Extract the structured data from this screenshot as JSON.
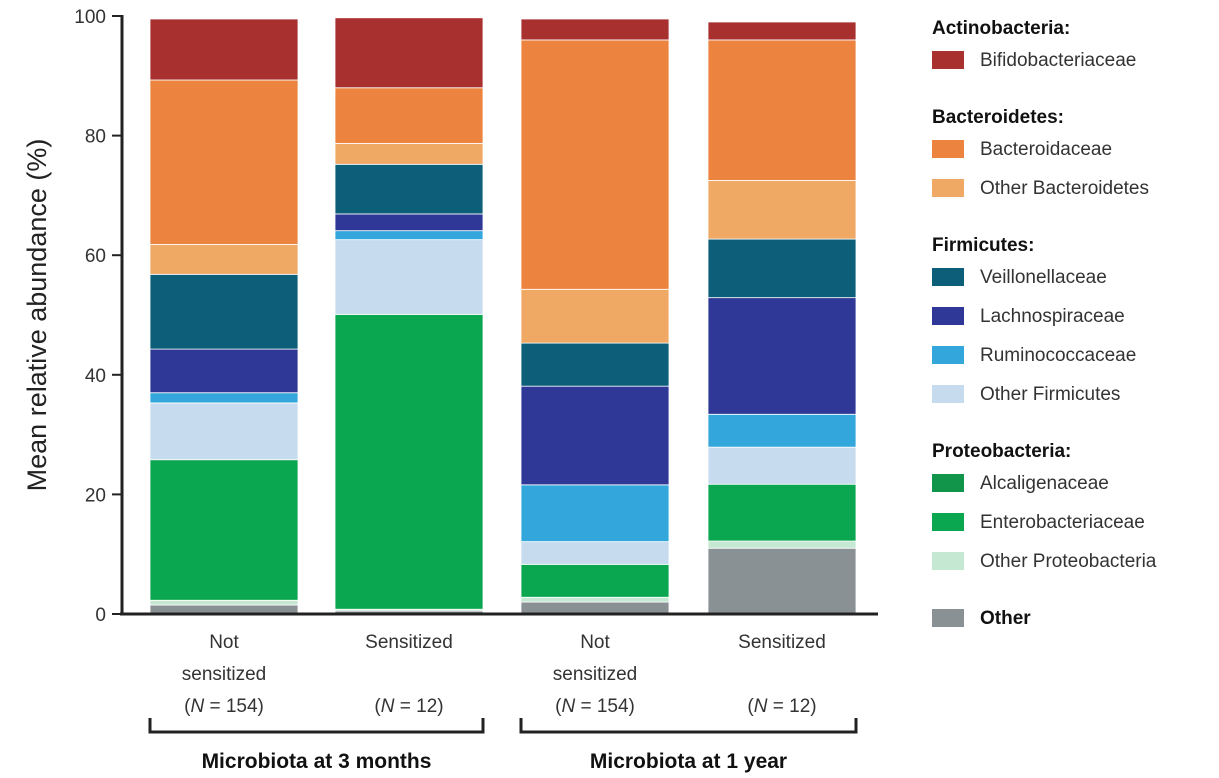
{
  "chart_data": {
    "type": "bar",
    "stacked": true,
    "title": "",
    "ylabel": "Mean relative abundance  (%)",
    "ylim": [
      0,
      100
    ],
    "yticks": [
      "0",
      "20",
      "40",
      "60",
      "80",
      "100"
    ],
    "categories": [
      {
        "line1": "Not",
        "line2": "sensitized",
        "n_pre": "(",
        "n_var": "N",
        "n_post": " = 154)"
      },
      {
        "line1": "Sensitized",
        "line2": "",
        "n_pre": "(",
        "n_var": "N",
        "n_post": " = 12)"
      },
      {
        "line1": "Not",
        "line2": "sensitized",
        "n_pre": "(",
        "n_var": "N",
        "n_post": " = 154)"
      },
      {
        "line1": "Sensitized",
        "line2": "",
        "n_pre": "(",
        "n_var": "N",
        "n_post": " = 12)"
      }
    ],
    "groups": [
      {
        "label": "Microbiota at 3 months",
        "categories": [
          0,
          1
        ]
      },
      {
        "label": "Microbiota at 1 year",
        "categories": [
          2,
          3
        ]
      }
    ],
    "series": [
      {
        "name": "Other",
        "color": "#8a9195",
        "values": [
          1.5,
          0.5,
          2.0,
          11.0
        ]
      },
      {
        "name": "Other Proteobacteria",
        "color": "#c5e8d2",
        "values": [
          0.8,
          0.3,
          0.8,
          1.2
        ]
      },
      {
        "name": "Enterobacteriaceae",
        "color": "#0aa650",
        "values": [
          23.5,
          49.3,
          5.5,
          9.5
        ]
      },
      {
        "name": "Alcaligenaceae",
        "color": "#10954a",
        "values": [
          0,
          0,
          0,
          0
        ]
      },
      {
        "name": "Other Firmicutes",
        "color": "#c6dcee",
        "values": [
          9.5,
          12.5,
          3.8,
          6.2
        ]
      },
      {
        "name": "Ruminococcaceae",
        "color": "#33a6dc",
        "values": [
          1.7,
          1.5,
          9.5,
          5.5
        ]
      },
      {
        "name": "Lachnospiraceae",
        "color": "#2f3896",
        "values": [
          7.3,
          2.8,
          16.5,
          19.5
        ]
      },
      {
        "name": "Veillonellaceae",
        "color": "#0d5f79",
        "values": [
          12.5,
          8.3,
          7.2,
          9.8
        ]
      },
      {
        "name": "Other Bacteroidetes",
        "color": "#f0a865",
        "values": [
          5.0,
          3.5,
          9.0,
          9.8
        ]
      },
      {
        "name": "Bacteroidaceae",
        "color": "#ec833e",
        "values": [
          27.5,
          9.3,
          41.7,
          23.5
        ]
      },
      {
        "name": "Bifidobacteriaceae",
        "color": "#a8302e",
        "values": [
          10.2,
          11.7,
          3.5,
          3.0
        ]
      }
    ],
    "legend": {
      "placement": "right",
      "groups": [
        {
          "label": "Actinobacteria:",
          "items": [
            {
              "name": "Bifidobacteriaceae",
              "color": "#a8302e"
            }
          ]
        },
        {
          "label": "Bacteroidetes:",
          "items": [
            {
              "name": "Bacteroidaceae",
              "color": "#ec833e"
            },
            {
              "name": "Other Bacteroidetes",
              "color": "#f0a865"
            }
          ]
        },
        {
          "label": "Firmicutes:",
          "items": [
            {
              "name": "Veillonellaceae",
              "color": "#0d5f79"
            },
            {
              "name": "Lachnospiraceae",
              "color": "#2f3896"
            },
            {
              "name": "Ruminococcaceae",
              "color": "#33a6dc"
            },
            {
              "name": "Other Firmicutes",
              "color": "#c6dcee"
            }
          ]
        },
        {
          "label": "Proteobacteria:",
          "items": [
            {
              "name": "Alcaligenaceae",
              "color": "#10954a"
            },
            {
              "name": "Enterobacteriaceae",
              "color": "#0aa650"
            },
            {
              "name": "Other Proteobacteria",
              "color": "#c5e8d2"
            }
          ]
        }
      ],
      "standalone": [
        {
          "name": "Other",
          "color": "#8a9195"
        }
      ]
    },
    "grid": false
  }
}
